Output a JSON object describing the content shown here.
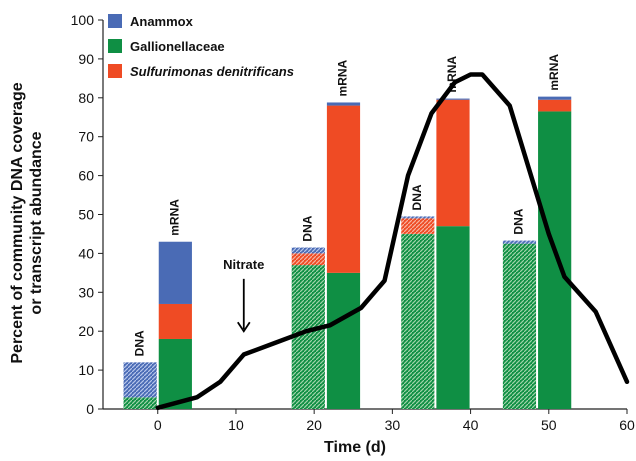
{
  "chart_data": {
    "type": "bar",
    "xlabel": "Time (d)",
    "ylabel": [
      "Percent of community DNA coverage",
      "or transcript abundance"
    ],
    "xlim": [
      -7,
      60
    ],
    "ylim": [
      0,
      100
    ],
    "xticks": [
      0,
      10,
      20,
      30,
      40,
      50,
      60
    ],
    "yticks": [
      0,
      10,
      20,
      30,
      40,
      50,
      60,
      70,
      80,
      90,
      100
    ],
    "legend_position": "top-left",
    "series": [
      {
        "name": "Anammox",
        "color": "#4a6bb5"
      },
      {
        "name": "Gallionellaceae",
        "color": "#0f8f44"
      },
      {
        "name": "Sulfurimonas denitrificans",
        "color": "#ef4b24",
        "italic": true
      }
    ],
    "bars": [
      {
        "label": "DNA",
        "x_start": -4.5,
        "x_end": 0,
        "type": "DNA",
        "Gallionellaceae": 3,
        "Sulfurimonas denitrificans": 0,
        "Anammox": 9
      },
      {
        "label": "mRNA",
        "x_start": 0,
        "x_end": 4.5,
        "type": "mRNA",
        "Gallionellaceae": 18,
        "Sulfurimonas denitrificans": 9,
        "Anammox": 16
      },
      {
        "label": "DNA",
        "x_start": 17,
        "x_end": 21.5,
        "type": "DNA",
        "Gallionellaceae": 37,
        "Sulfurimonas denitrificans": 3,
        "Anammox": 1.5
      },
      {
        "label": "mRNA",
        "x_start": 21.5,
        "x_end": 26,
        "type": "mRNA",
        "Gallionellaceae": 35,
        "Sulfurimonas denitrificans": 43,
        "Anammox": 0.8
      },
      {
        "label": "DNA",
        "x_start": 31,
        "x_end": 35.5,
        "type": "DNA",
        "Gallionellaceae": 45,
        "Sulfurimonas denitrificans": 4,
        "Anammox": 0.5
      },
      {
        "label": "mRNA",
        "x_start": 35.5,
        "x_end": 40,
        "type": "mRNA",
        "Gallionellaceae": 47,
        "Sulfurimonas denitrificans": 32.5,
        "Anammox": 0.3
      },
      {
        "label": "DNA",
        "x_start": 44,
        "x_end": 48.5,
        "type": "DNA",
        "Gallionellaceae": 42.5,
        "Sulfurimonas denitrificans": 0,
        "Anammox": 0.8
      },
      {
        "label": "mRNA",
        "x_start": 48.5,
        "x_end": 53,
        "type": "mRNA",
        "Gallionellaceae": 76.5,
        "Sulfurimonas denitrificans": 3,
        "Anammox": 0.8
      }
    ],
    "curve": {
      "x": [
        0,
        5,
        8,
        11,
        15,
        19,
        22,
        26,
        29,
        32,
        35,
        38,
        40,
        41.5,
        45,
        50,
        52,
        56,
        60
      ],
      "y": [
        0.3,
        3,
        7,
        14,
        17,
        20,
        21.5,
        26,
        33,
        60,
        76,
        84,
        86,
        86,
        78,
        45,
        34,
        25,
        7
      ]
    },
    "annotations": [
      {
        "text": "Nitrate",
        "x": 11,
        "arrow_from": 35,
        "arrow_to": 20
      }
    ]
  }
}
